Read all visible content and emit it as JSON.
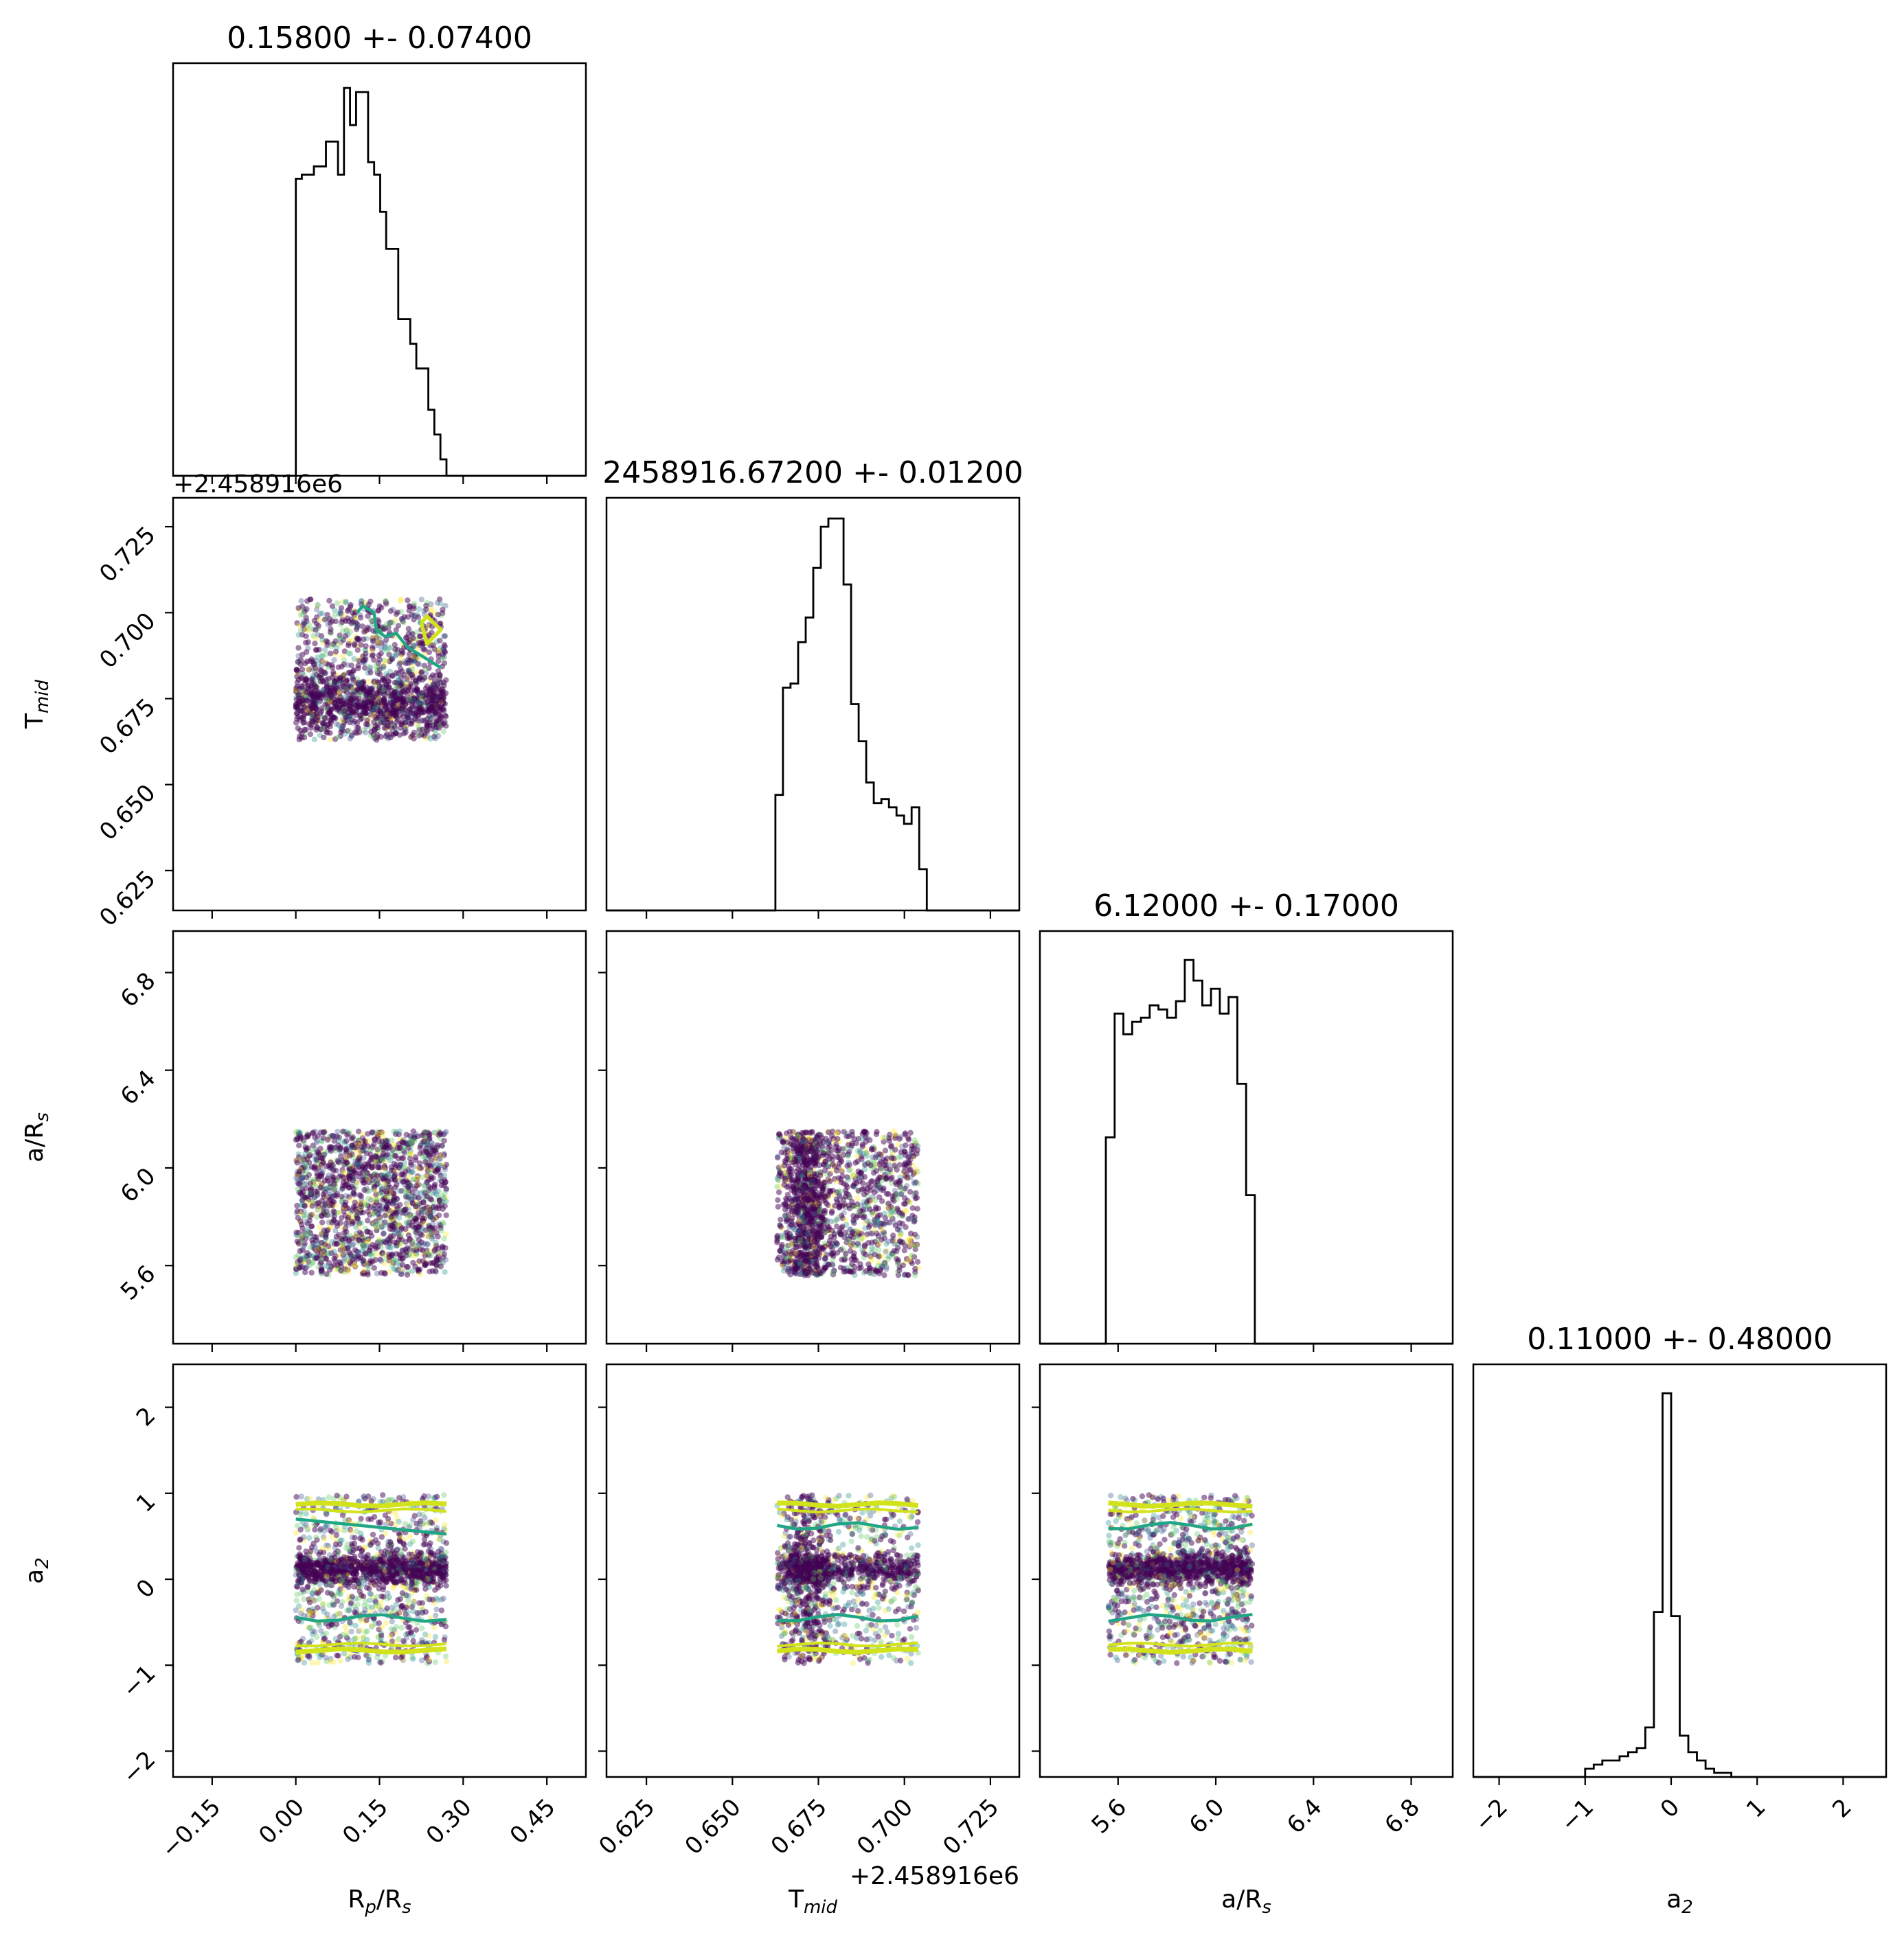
{
  "chart_data": {
    "type": "corner",
    "parameters": [
      {
        "key": "rprs",
        "label_main": "R",
        "label_sub": "p",
        "label_tail": "/R",
        "label_tail_sub": "s",
        "title": "0.15800 +- 0.07400",
        "range": [
          -0.22,
          0.52
        ],
        "ticks": [
          -0.15,
          0.0,
          0.15,
          0.3,
          0.45
        ],
        "tick_labels": [
          "−0.15",
          "0.00",
          "0.15",
          "0.30",
          "0.45"
        ],
        "offset": "",
        "hist_edges_lo": 0.0,
        "hist_edges_hi": 0.27,
        "hist": [
          0.72,
          0.73,
          0.73,
          0.75,
          0.75,
          0.81,
          0.81,
          0.73,
          0.94,
          0.85,
          0.93,
          0.93,
          0.76,
          0.73,
          0.64,
          0.55,
          0.55,
          0.38,
          0.38,
          0.32,
          0.26,
          0.26,
          0.16,
          0.1,
          0.04
        ]
      },
      {
        "key": "tmid",
        "label_main": "T",
        "label_sub": "mid",
        "label_tail": "",
        "label_tail_sub": "",
        "title": "2458916.67200 +- 0.01200",
        "range": [
          0.6134,
          0.7334
        ],
        "ticks": [
          0.625,
          0.65,
          0.675,
          0.7,
          0.725
        ],
        "tick_labels": [
          "0.625",
          "0.650",
          "0.675",
          "0.700",
          "0.725"
        ],
        "offset": "+2.458916e6",
        "hist_edges_lo": 0.6625,
        "hist_edges_hi": 0.7065,
        "hist": [
          0.28,
          0.54,
          0.55,
          0.65,
          0.71,
          0.83,
          0.93,
          0.95,
          0.95,
          0.79,
          0.5,
          0.41,
          0.31,
          0.26,
          0.27,
          0.25,
          0.23,
          0.21,
          0.25,
          0.1
        ]
      },
      {
        "key": "aRs",
        "label_main": "a/R",
        "label_sub": "s",
        "label_tail": "",
        "label_tail_sub": "",
        "title": "6.12000 +- 0.17000",
        "range": [
          5.28,
          6.97
        ],
        "ticks": [
          5.6,
          6.0,
          6.4,
          6.8
        ],
        "tick_labels": [
          "5.6",
          "6.0",
          "6.4",
          "6.8"
        ],
        "offset": "",
        "hist_edges_lo": 5.55,
        "hist_edges_hi": 6.16,
        "hist": [
          0.5,
          0.8,
          0.75,
          0.78,
          0.79,
          0.82,
          0.81,
          0.79,
          0.83,
          0.93,
          0.88,
          0.82,
          0.86,
          0.8,
          0.84,
          0.63,
          0.36
        ]
      },
      {
        "key": "a2",
        "label_main": "a",
        "label_sub": "2",
        "label_tail": "",
        "label_tail_sub": "",
        "title": "0.11000 +- 0.48000",
        "range": [
          -2.3,
          2.5
        ],
        "ticks": [
          -2,
          -1,
          0,
          1,
          2
        ],
        "tick_labels": [
          "−2",
          "−1",
          "0",
          "1",
          "2"
        ],
        "offset": "",
        "hist_edges_lo": -1.2,
        "hist_edges_hi": 1.2,
        "hist": [
          0.0,
          0.0,
          0.02,
          0.03,
          0.04,
          0.04,
          0.05,
          0.06,
          0.07,
          0.12,
          0.4,
          0.93,
          0.39,
          0.1,
          0.06,
          0.04,
          0.02,
          0.01,
          0.01,
          0.0,
          0.0,
          0.0,
          0.0,
          0.0
        ]
      }
    ],
    "y_axis_ranges": {
      "tmid": [
        0.6134,
        0.7334
      ],
      "aRs": [
        5.28,
        6.97
      ],
      "a2": [
        -2.3,
        2.5
      ]
    },
    "y_ticks": {
      "tmid": {
        "values": [
          0.625,
          0.65,
          0.675,
          0.7,
          0.725
        ],
        "labels": [
          "0.625",
          "0.650",
          "0.675",
          "0.700",
          "0.725"
        ],
        "offset": "+2.458916e6"
      },
      "aRs": {
        "values": [
          5.6,
          6.0,
          6.4,
          6.8
        ],
        "labels": [
          "5.6",
          "6.0",
          "6.4",
          "6.8"
        ]
      },
      "a2": {
        "values": [
          -2,
          -1,
          0,
          1,
          2
        ],
        "labels": [
          "−2",
          "−1",
          "0",
          "1",
          "2"
        ]
      }
    },
    "scatter_bounds": {
      "rprs": [
        0.0,
        0.27
      ],
      "tmid": [
        0.663,
        0.704
      ],
      "aRs": [
        5.56,
        6.15
      ],
      "a2": [
        -0.98,
        0.98
      ]
    },
    "colormap": [
      "#440154",
      "#3b528b",
      "#21918c",
      "#5ec962",
      "#fde725"
    ],
    "contour_colors": {
      "inner": "#21a685",
      "outer": "#d2e21b",
      "outer_edge": "#fde725"
    },
    "grid": false,
    "legend": "none"
  }
}
